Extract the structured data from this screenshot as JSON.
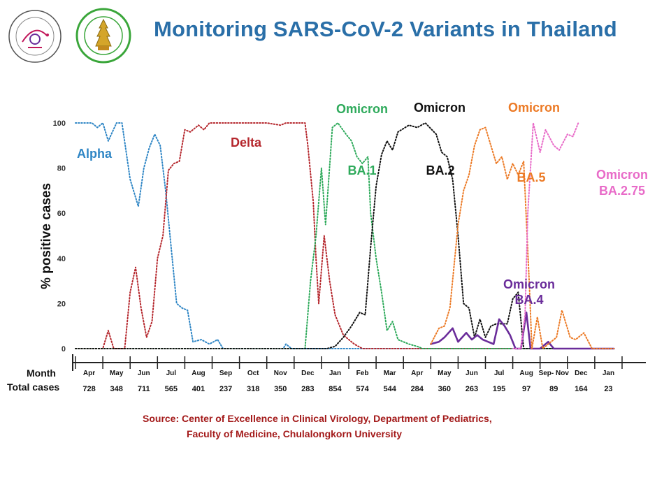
{
  "header": {
    "title": "Monitoring SARS-CoV-2 Variants in Thailand"
  },
  "source": {
    "line1": "Source: Center of Excellence in Clinical Virology, Department of Pediatrics,",
    "line2": "Faculty of Medicine, Chulalongkorn University"
  },
  "colors": {
    "title": "#2a6fa8",
    "alpha": "#2f86c5",
    "delta": "#b5272d",
    "ba1": "#2eaa5b",
    "ba2": "#111111",
    "ba4": "#6a2c9a",
    "ba5": "#ec7a25",
    "ba275": "#e86bc8",
    "source": "#a31919"
  },
  "chart_data": {
    "type": "line",
    "ylabel": "% positive cases",
    "ylim": [
      0,
      100
    ],
    "yticks": [
      0,
      20,
      40,
      60,
      80,
      100
    ],
    "row_labels": {
      "month": "Month",
      "total": "Total cases"
    },
    "months": [
      "Apr",
      "May",
      "Jun",
      "Jul",
      "Aug",
      "Sep",
      "Oct",
      "Nov",
      "Dec",
      "Jan",
      "Feb",
      "Mar",
      "Apr",
      "May",
      "Jun",
      "Jul",
      "Aug",
      "Sep- Nov",
      "Dec",
      "Jan"
    ],
    "totals": [
      "728",
      "348",
      "711",
      "565",
      "401",
      "237",
      "318",
      "350",
      "283",
      "854",
      "574",
      "544",
      "284",
      "360",
      "263",
      "195",
      "97",
      "89",
      "164",
      "23"
    ],
    "x_unit": "month index (0 = start of Apr)",
    "series": [
      {
        "key": "alpha",
        "style": "dotted",
        "label_lines": [
          "Alpha"
        ],
        "points": [
          [
            0,
            100
          ],
          [
            0.6,
            100
          ],
          [
            0.8,
            98
          ],
          [
            1.0,
            100
          ],
          [
            1.2,
            92
          ],
          [
            1.5,
            100
          ],
          [
            1.6,
            100
          ],
          [
            1.7,
            100
          ],
          [
            2.0,
            75
          ],
          [
            2.3,
            63
          ],
          [
            2.5,
            80
          ],
          [
            2.7,
            89
          ],
          [
            2.9,
            95
          ],
          [
            3.1,
            90
          ],
          [
            3.3,
            70
          ],
          [
            3.5,
            45
          ],
          [
            3.7,
            20
          ],
          [
            3.9,
            18
          ],
          [
            4.1,
            17
          ],
          [
            4.3,
            3
          ],
          [
            4.6,
            4
          ],
          [
            4.9,
            2
          ],
          [
            5.2,
            4
          ],
          [
            5.4,
            0
          ],
          [
            7.0,
            0
          ],
          [
            7.6,
            0
          ],
          [
            7.7,
            2
          ],
          [
            7.9,
            0
          ],
          [
            9.3,
            0
          ],
          [
            19.7,
            0
          ]
        ]
      },
      {
        "key": "delta",
        "style": "dotted",
        "label_lines": [
          "Delta"
        ],
        "points": [
          [
            0,
            0
          ],
          [
            0.6,
            0
          ],
          [
            1.0,
            0
          ],
          [
            1.2,
            8
          ],
          [
            1.4,
            0
          ],
          [
            1.8,
            0
          ],
          [
            2.0,
            25
          ],
          [
            2.2,
            36
          ],
          [
            2.4,
            18
          ],
          [
            2.6,
            5
          ],
          [
            2.8,
            12
          ],
          [
            3.0,
            40
          ],
          [
            3.2,
            50
          ],
          [
            3.4,
            79
          ],
          [
            3.6,
            82
          ],
          [
            3.8,
            83
          ],
          [
            4.0,
            97
          ],
          [
            4.2,
            96
          ],
          [
            4.5,
            99
          ],
          [
            4.7,
            97
          ],
          [
            4.9,
            100
          ],
          [
            5.5,
            100
          ],
          [
            7.0,
            100
          ],
          [
            7.5,
            99
          ],
          [
            7.7,
            100
          ],
          [
            8.4,
            100
          ],
          [
            8.5,
            90
          ],
          [
            8.7,
            65
          ],
          [
            8.8,
            40
          ],
          [
            8.9,
            20
          ],
          [
            9.1,
            50
          ],
          [
            9.3,
            30
          ],
          [
            9.5,
            15
          ],
          [
            9.8,
            6
          ],
          [
            10.2,
            2
          ],
          [
            10.5,
            0
          ],
          [
            11.0,
            0
          ],
          [
            19.7,
            0
          ]
        ]
      },
      {
        "key": "ba1",
        "style": "dotted",
        "label_lines": [
          "BA.1"
        ],
        "header_label": "Omicron",
        "points": [
          [
            0,
            0
          ],
          [
            8.2,
            0
          ],
          [
            8.4,
            0
          ],
          [
            8.6,
            30
          ],
          [
            8.8,
            50
          ],
          [
            9.0,
            80
          ],
          [
            9.15,
            55
          ],
          [
            9.4,
            98
          ],
          [
            9.6,
            100
          ],
          [
            9.9,
            95
          ],
          [
            10.1,
            92
          ],
          [
            10.3,
            85
          ],
          [
            10.5,
            82
          ],
          [
            10.7,
            85
          ],
          [
            10.8,
            60
          ],
          [
            11.0,
            40
          ],
          [
            11.2,
            25
          ],
          [
            11.4,
            8
          ],
          [
            11.6,
            12
          ],
          [
            11.8,
            4
          ],
          [
            12.2,
            2
          ],
          [
            12.5,
            1
          ],
          [
            12.7,
            0
          ],
          [
            19.7,
            0
          ]
        ]
      },
      {
        "key": "ba2",
        "style": "dotted",
        "label_lines": [
          "BA.2"
        ],
        "header_label": "Omicron",
        "points": [
          [
            0,
            0
          ],
          [
            9.2,
            0
          ],
          [
            9.5,
            1
          ],
          [
            9.8,
            5
          ],
          [
            10.1,
            10
          ],
          [
            10.4,
            16
          ],
          [
            10.6,
            15
          ],
          [
            10.8,
            45
          ],
          [
            11.0,
            72
          ],
          [
            11.2,
            86
          ],
          [
            11.4,
            92
          ],
          [
            11.6,
            88
          ],
          [
            11.8,
            96
          ],
          [
            12.2,
            99
          ],
          [
            12.5,
            98
          ],
          [
            12.8,
            100
          ],
          [
            13.2,
            95
          ],
          [
            13.4,
            87
          ],
          [
            13.6,
            85
          ],
          [
            13.8,
            75
          ],
          [
            14.0,
            50
          ],
          [
            14.2,
            20
          ],
          [
            14.4,
            18
          ],
          [
            14.6,
            5
          ],
          [
            14.8,
            13
          ],
          [
            15.0,
            5
          ],
          [
            15.2,
            10
          ],
          [
            15.4,
            11
          ],
          [
            15.8,
            11
          ],
          [
            16.0,
            22
          ],
          [
            16.2,
            25
          ],
          [
            16.4,
            0
          ],
          [
            19.7,
            0
          ]
        ]
      },
      {
        "key": "ba4",
        "style": "solid",
        "label_lines": [
          "Omicron",
          "BA.4"
        ],
        "points": [
          [
            13.0,
            2
          ],
          [
            13.3,
            3
          ],
          [
            13.5,
            5
          ],
          [
            13.8,
            9
          ],
          [
            14.0,
            3
          ],
          [
            14.3,
            7
          ],
          [
            14.5,
            4
          ],
          [
            14.7,
            6
          ],
          [
            14.9,
            4
          ],
          [
            15.1,
            3
          ],
          [
            15.3,
            2
          ],
          [
            15.5,
            13
          ],
          [
            15.7,
            10
          ],
          [
            15.9,
            6
          ],
          [
            16.1,
            0
          ],
          [
            16.3,
            0
          ],
          [
            16.5,
            16
          ],
          [
            16.65,
            0
          ],
          [
            17.0,
            0
          ],
          [
            17.3,
            3
          ],
          [
            17.5,
            0
          ],
          [
            19.7,
            0
          ]
        ]
      },
      {
        "key": "ba5",
        "style": "dotted",
        "label_lines": [
          "BA.5"
        ],
        "header_label": "Omicron",
        "points": [
          [
            13.0,
            2
          ],
          [
            13.3,
            9
          ],
          [
            13.5,
            10
          ],
          [
            13.7,
            18
          ],
          [
            14.0,
            55
          ],
          [
            14.2,
            70
          ],
          [
            14.4,
            77
          ],
          [
            14.6,
            90
          ],
          [
            14.8,
            97
          ],
          [
            15.0,
            98
          ],
          [
            15.2,
            90
          ],
          [
            15.4,
            82
          ],
          [
            15.6,
            85
          ],
          [
            15.8,
            75
          ],
          [
            16.0,
            82
          ],
          [
            16.2,
            77
          ],
          [
            16.4,
            83
          ],
          [
            16.6,
            30
          ],
          [
            16.7,
            0
          ],
          [
            16.9,
            14
          ],
          [
            17.1,
            0
          ],
          [
            17.3,
            2
          ],
          [
            17.6,
            5
          ],
          [
            17.8,
            17
          ],
          [
            18.1,
            5
          ],
          [
            18.3,
            4
          ],
          [
            18.6,
            7
          ],
          [
            18.9,
            0
          ],
          [
            19.7,
            0
          ]
        ]
      },
      {
        "key": "ba275",
        "style": "dotted",
        "label_lines": [
          "Omicron",
          "BA.2.75"
        ],
        "points": [
          [
            16.0,
            0
          ],
          [
            16.3,
            0
          ],
          [
            16.45,
            15
          ],
          [
            16.55,
            60
          ],
          [
            16.75,
            100
          ],
          [
            17.0,
            87
          ],
          [
            17.2,
            97
          ],
          [
            17.5,
            90
          ],
          [
            17.7,
            88
          ],
          [
            18.0,
            95
          ],
          [
            18.2,
            94
          ],
          [
            18.4,
            100
          ]
        ]
      }
    ]
  }
}
